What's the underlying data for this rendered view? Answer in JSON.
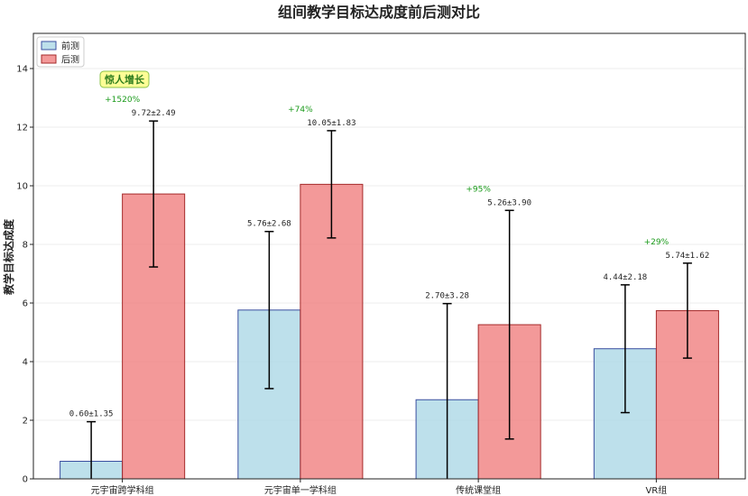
{
  "chart_data": {
    "type": "bar",
    "title": "组间教学目标达成度前后测对比",
    "xlabel": "",
    "ylabel": "教学目标达成度",
    "ylim": [
      0,
      15.2
    ],
    "yticks": [
      0,
      2,
      4,
      6,
      8,
      10,
      12,
      14
    ],
    "categories": [
      "元宇宙跨学科组",
      "元宇宙单一学科组",
      "传统课堂组",
      "VR组"
    ],
    "series": [
      {
        "name": "前测",
        "color": "#add8e6",
        "edge": "#3a4fa0",
        "values": [
          0.6,
          5.76,
          2.7,
          4.44
        ],
        "errors": [
          1.35,
          2.68,
          3.28,
          2.18
        ],
        "labels": [
          "0.60±1.35",
          "5.76±2.68",
          "2.70±3.28",
          "4.44±2.18"
        ]
      },
      {
        "name": "后测",
        "color": "#f08080",
        "edge": "#a52a2a",
        "values": [
          9.72,
          10.05,
          5.26,
          5.74
        ],
        "errors": [
          2.49,
          1.83,
          3.9,
          1.62
        ],
        "labels": [
          "9.72±2.49",
          "10.05±1.83",
          "5.26±3.90",
          "5.74±1.62"
        ]
      }
    ],
    "growth_labels": [
      "+1520%",
      "+74%",
      "+95%",
      "+29%"
    ],
    "callout": "惊人增长",
    "legend_position": "top-left",
    "grid": true
  }
}
